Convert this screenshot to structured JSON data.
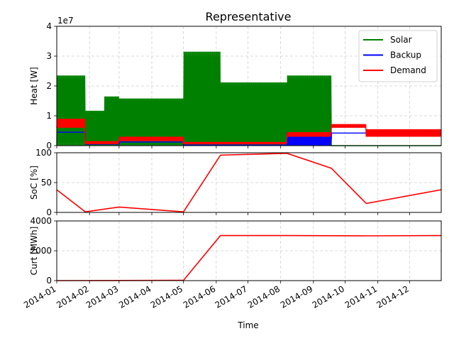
{
  "chart_data": [
    {
      "type": "line",
      "title": "Representative",
      "ylabel": "Heat [W]",
      "offset_text": "1e7",
      "xlim": [
        "2014-01-01",
        "2014-12-31"
      ],
      "ylim": [
        0,
        4
      ],
      "yticks": [
        0,
        1,
        2,
        3,
        4
      ],
      "grid": true,
      "legend": "top-right",
      "series": [
        {
          "name": "Solar",
          "color": "#008000",
          "style": "daily oscillation between 0 and peak",
          "segments": [
            {
              "start": "2014-01-01",
              "end": "2014-01-28",
              "peak": 2.35
            },
            {
              "start": "2014-01-28",
              "end": "2014-02-15",
              "peak": 1.17
            },
            {
              "start": "2014-02-15",
              "end": "2014-03-01",
              "peak": 1.65
            },
            {
              "start": "2014-03-01",
              "end": "2014-05-01",
              "peak": 1.58
            },
            {
              "start": "2014-05-01",
              "end": "2014-06-05",
              "peak": 3.15
            },
            {
              "start": "2014-06-05",
              "end": "2014-08-07",
              "peak": 2.12
            },
            {
              "start": "2014-08-07",
              "end": "2014-09-18",
              "peak": 2.35
            },
            {
              "start": "2014-09-18",
              "end": "2014-12-31",
              "peak": 0
            }
          ]
        },
        {
          "name": "Backup",
          "color": "#0000ff",
          "segments": [
            {
              "start": "2014-01-01",
              "end": "2014-01-28",
              "level": 0.45
            },
            {
              "start": "2014-01-28",
              "end": "2014-03-01",
              "level": 0.05
            },
            {
              "start": "2014-03-01",
              "end": "2014-05-01",
              "level": 0.12
            },
            {
              "start": "2014-05-01",
              "end": "2014-08-07",
              "level": 0.02
            },
            {
              "start": "2014-08-07",
              "end": "2014-09-18",
              "level": 0.25,
              "high": 0.45
            },
            {
              "start": "2014-09-18",
              "end": "2014-10-21",
              "level": 0.42
            },
            {
              "start": "2014-10-21",
              "end": "2014-12-31",
              "level": 0.35
            }
          ]
        },
        {
          "name": "Demand",
          "color": "#ff0000",
          "segments": [
            {
              "start": "2014-01-01",
              "end": "2014-01-28",
              "low": 0.6,
              "high": 0.9
            },
            {
              "start": "2014-01-28",
              "end": "2014-03-01",
              "low": 0.05,
              "high": 0.15
            },
            {
              "start": "2014-03-01",
              "end": "2014-05-01",
              "low": 0.15,
              "high": 0.3
            },
            {
              "start": "2014-05-01",
              "end": "2014-08-07",
              "low": 0.05,
              "high": 0.12
            },
            {
              "start": "2014-08-07",
              "end": "2014-09-18",
              "low": 0.3,
              "high": 0.45
            },
            {
              "start": "2014-09-18",
              "end": "2014-10-21",
              "low": 0.6,
              "high": 0.72
            },
            {
              "start": "2014-10-21",
              "end": "2014-12-31",
              "low": 0.3,
              "high": 0.55
            }
          ]
        }
      ]
    },
    {
      "type": "line",
      "ylabel": "SoC [%]",
      "ylim": [
        0,
        100
      ],
      "yticks": [
        0,
        50,
        100
      ],
      "grid": true,
      "series": [
        {
          "color": "#ff0000",
          "x": [
            "2014-01-01",
            "2014-01-28",
            "2014-03-01",
            "2014-05-01",
            "2014-06-05",
            "2014-08-07",
            "2014-09-18",
            "2014-10-21",
            "2014-12-31"
          ],
          "y": [
            38,
            1,
            9,
            1,
            96,
            99,
            74,
            15,
            38
          ]
        }
      ]
    },
    {
      "type": "line",
      "ylabel": "Curt [MWh]",
      "xlabel": "Time",
      "ylim": [
        0,
        4000
      ],
      "yticks": [
        0,
        2000,
        4000
      ],
      "grid": true,
      "xticks": [
        "2014-01",
        "2014-02",
        "2014-03",
        "2014-04",
        "2014-05",
        "2014-06",
        "2014-07",
        "2014-08",
        "2014-09",
        "2014-10",
        "2014-11",
        "2014-12"
      ],
      "series": [
        {
          "color": "#ff0000",
          "x": [
            "2014-01-01",
            "2014-05-01",
            "2014-06-05",
            "2014-08-07",
            "2014-10-21",
            "2014-12-31"
          ],
          "y": [
            0,
            20,
            3020,
            3020,
            3000,
            3020
          ]
        }
      ]
    }
  ]
}
